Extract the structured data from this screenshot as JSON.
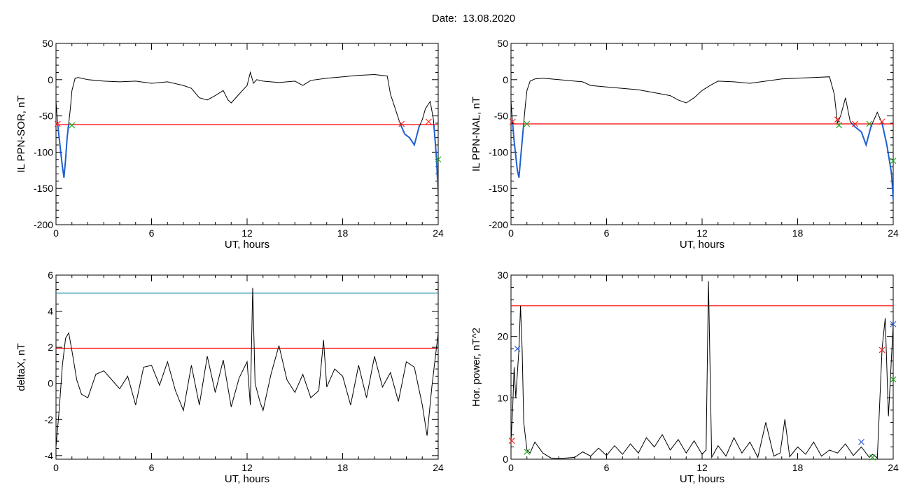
{
  "header": {
    "date_label": "Date:",
    "date_value": "13.08.2020"
  },
  "colors": {
    "line": "#000000",
    "threshold_red": "#ff0000",
    "threshold_cyan": "#1f8fa8",
    "highlight_blue": "#1f5fd0",
    "marker_green": "#1faa1f",
    "marker_red": "#ff2020",
    "marker_blue": "#3060e0"
  },
  "chart_data": [
    {
      "id": "sor",
      "type": "line",
      "xlabel": "UT, hours",
      "ylabel": "IL PPN-SOR, nT",
      "xlim": [
        0,
        24
      ],
      "ylim": [
        -200,
        50
      ],
      "xticks": [
        0,
        6,
        12,
        18,
        24
      ],
      "yticks": [
        50,
        0,
        -50,
        -100,
        -150,
        -200
      ],
      "threshold": -62,
      "highlight_below_threshold": true,
      "series": [
        {
          "x": [
            0,
            0.1,
            0.2,
            0.3,
            0.4,
            0.5,
            0.6,
            0.7,
            0.8,
            0.9,
            1.0,
            1.2,
            1.4,
            1.6,
            2.0,
            3.0,
            4.0,
            5.0,
            6.0,
            7.0,
            8.0,
            8.5,
            9.0,
            9.5,
            10.0,
            10.5,
            10.8,
            11.0,
            11.5,
            12.0,
            12.2,
            12.4,
            12.6,
            13.0,
            14.0,
            15.0,
            15.5,
            16.0,
            17.0,
            18.0,
            19.0,
            20.0,
            20.8,
            21.0,
            21.3,
            21.6,
            21.9,
            22.2,
            22.5,
            22.8,
            23.0,
            23.2,
            23.5,
            23.7,
            23.9,
            24.0
          ],
          "y": [
            -30,
            -60,
            -80,
            -100,
            -120,
            -135,
            -110,
            -80,
            -60,
            -40,
            -15,
            2,
            3,
            2,
            0,
            -2,
            -3,
            -2,
            -5,
            -3,
            -8,
            -12,
            -25,
            -28,
            -22,
            -15,
            -28,
            -32,
            -20,
            -8,
            10,
            -5,
            0,
            -2,
            -4,
            -2,
            -8,
            -1,
            2,
            4,
            6,
            7,
            5,
            -20,
            -40,
            -60,
            -75,
            -80,
            -90,
            -65,
            -55,
            -40,
            -30,
            -55,
            -110,
            -160
          ]
        }
      ],
      "markers": [
        {
          "x": 0.1,
          "y": -61,
          "color": "marker_red"
        },
        {
          "x": 1.0,
          "y": -63,
          "color": "marker_green"
        },
        {
          "x": 21.7,
          "y": -61,
          "color": "marker_red"
        },
        {
          "x": 23.4,
          "y": -58,
          "color": "marker_red"
        },
        {
          "x": 24.0,
          "y": -110,
          "color": "marker_green"
        }
      ]
    },
    {
      "id": "nal",
      "type": "line",
      "xlabel": "UT, hours",
      "ylabel": "IL PPN-NAL, nT",
      "xlim": [
        0,
        24
      ],
      "ylim": [
        -200,
        50
      ],
      "xticks": [
        0,
        6,
        12,
        18,
        24
      ],
      "yticks": [
        50,
        0,
        -50,
        -100,
        -150,
        -200
      ],
      "threshold": -61,
      "highlight_below_threshold": true,
      "series": [
        {
          "x": [
            0,
            0.1,
            0.2,
            0.3,
            0.4,
            0.5,
            0.6,
            0.7,
            0.8,
            0.9,
            1.0,
            1.2,
            1.5,
            2.0,
            3.0,
            4.0,
            4.5,
            5.0,
            6.0,
            7.0,
            8.0,
            9.0,
            10.0,
            10.5,
            11.0,
            11.5,
            12.0,
            12.5,
            13.0,
            14.0,
            15.0,
            16.0,
            17.0,
            18.0,
            19.0,
            20.0,
            20.3,
            20.5,
            20.7,
            21.0,
            21.3,
            21.6,
            22.0,
            22.3,
            22.6,
            23.0,
            23.3,
            23.6,
            23.9,
            24.0
          ],
          "y": [
            -30,
            -60,
            -85,
            -105,
            -125,
            -135,
            -110,
            -85,
            -60,
            -35,
            -15,
            -2,
            1,
            2,
            0,
            -2,
            -3,
            -8,
            -10,
            -12,
            -14,
            -18,
            -22,
            -28,
            -32,
            -25,
            -15,
            -8,
            -2,
            -3,
            -5,
            -2,
            1,
            2,
            3,
            4,
            -20,
            -60,
            -50,
            -25,
            -58,
            -65,
            -72,
            -90,
            -65,
            -45,
            -60,
            -90,
            -130,
            -165
          ]
        }
      ],
      "markers": [
        {
          "x": 0.1,
          "y": -58,
          "color": "marker_red"
        },
        {
          "x": 1.0,
          "y": -61,
          "color": "marker_green"
        },
        {
          "x": 20.5,
          "y": -55,
          "color": "marker_red"
        },
        {
          "x": 20.6,
          "y": -63,
          "color": "marker_green"
        },
        {
          "x": 21.6,
          "y": -61,
          "color": "marker_red"
        },
        {
          "x": 22.5,
          "y": -61,
          "color": "marker_green"
        },
        {
          "x": 23.3,
          "y": -58,
          "color": "marker_red"
        },
        {
          "x": 24.0,
          "y": -112,
          "color": "marker_green"
        }
      ]
    },
    {
      "id": "deltax",
      "type": "line",
      "xlabel": "UT, hours",
      "ylabel": "deltaX, nT",
      "xlim": [
        0,
        24
      ],
      "ylim": [
        -4.2,
        6
      ],
      "xticks": [
        0,
        6,
        12,
        18,
        24
      ],
      "yticks": [
        6,
        4,
        2,
        0,
        -2,
        -4
      ],
      "thresholds": [
        {
          "y": 5.0,
          "color": "threshold_cyan"
        },
        {
          "y": 1.95,
          "color": "threshold_red"
        }
      ],
      "series": [
        {
          "x": [
            0,
            0.2,
            0.4,
            0.6,
            0.8,
            1.0,
            1.3,
            1.6,
            2.0,
            2.5,
            3.0,
            3.5,
            4.0,
            4.5,
            5.0,
            5.5,
            6.0,
            6.5,
            7.0,
            7.5,
            8.0,
            8.5,
            9.0,
            9.5,
            10.0,
            10.5,
            11.0,
            11.5,
            12.0,
            12.2,
            12.35,
            12.5,
            12.8,
            13.0,
            13.5,
            14.0,
            14.5,
            15.0,
            15.5,
            16.0,
            16.5,
            16.8,
            17.0,
            17.5,
            18.0,
            18.5,
            19.0,
            19.5,
            20.0,
            20.5,
            21.0,
            21.5,
            22.0,
            22.5,
            23.0,
            23.3,
            23.6,
            24.0
          ],
          "y": [
            -3.5,
            -1.5,
            1.0,
            2.5,
            2.8,
            1.8,
            0.2,
            -0.6,
            -0.8,
            0.5,
            0.7,
            0.2,
            -0.3,
            0.4,
            -1.2,
            0.9,
            1.0,
            -0.1,
            1.2,
            -0.4,
            -1.5,
            1.0,
            -1.2,
            1.5,
            -0.5,
            1.3,
            -1.3,
            0.3,
            1.2,
            -1.2,
            5.3,
            0.0,
            -1.0,
            -1.5,
            0.5,
            2.1,
            0.2,
            -0.5,
            0.5,
            -0.8,
            -0.4,
            2.4,
            -0.2,
            0.8,
            0.4,
            -1.2,
            1.0,
            -0.8,
            1.5,
            -0.2,
            0.6,
            -1.0,
            1.2,
            0.9,
            -1.2,
            -2.9,
            -0.2,
            2.8
          ]
        }
      ]
    },
    {
      "id": "hor",
      "type": "line",
      "xlabel": "UT, hours",
      "ylabel": "Hor. power, nT^2",
      "xlim": [
        0,
        24
      ],
      "ylim": [
        0,
        30
      ],
      "xticks": [
        0,
        6,
        12,
        18,
        24
      ],
      "yticks": [
        30,
        20,
        10,
        0
      ],
      "threshold": 25,
      "series": [
        {
          "x": [
            0,
            0.1,
            0.2,
            0.3,
            0.4,
            0.5,
            0.6,
            0.7,
            0.8,
            1.0,
            1.2,
            1.5,
            2.0,
            2.5,
            3.0,
            4.0,
            4.5,
            5.0,
            5.5,
            6.0,
            6.5,
            7.0,
            7.5,
            8.0,
            8.5,
            9.0,
            9.5,
            10.0,
            10.5,
            11.0,
            11.5,
            12.0,
            12.25,
            12.4,
            12.6,
            13.0,
            13.5,
            14.0,
            14.5,
            15.0,
            15.5,
            16.0,
            16.5,
            16.9,
            17.2,
            17.5,
            18.0,
            18.5,
            19.0,
            19.5,
            20.0,
            20.5,
            21.0,
            21.5,
            22.0,
            22.5,
            22.7,
            23.0,
            23.3,
            23.5,
            23.7,
            24.0
          ],
          "y": [
            3,
            8,
            15,
            10,
            14,
            18,
            25,
            18,
            6,
            1.5,
            1.0,
            2.8,
            1.0,
            0.2,
            0.1,
            0.3,
            1.2,
            0.5,
            1.8,
            0.6,
            2.2,
            0.8,
            2.5,
            1.0,
            3.5,
            2.0,
            4.0,
            1.5,
            3.2,
            1.0,
            3.0,
            0.8,
            1.5,
            29,
            0.3,
            2.2,
            0.5,
            3.5,
            1.0,
            2.8,
            0.3,
            6.0,
            0.5,
            1.0,
            6.5,
            0.4,
            2.0,
            0.8,
            2.8,
            0.5,
            1.5,
            1.0,
            2.5,
            0.6,
            2.0,
            0.3,
            0.8,
            0.2,
            18,
            23,
            7,
            22
          ]
        }
      ],
      "markers": [
        {
          "x": 0.4,
          "y": 18,
          "color": "marker_blue"
        },
        {
          "x": 1.0,
          "y": 1.2,
          "color": "marker_green"
        },
        {
          "x": 22.0,
          "y": 2.8,
          "color": "marker_blue"
        },
        {
          "x": 22.7,
          "y": 0.3,
          "color": "marker_green"
        },
        {
          "x": 23.3,
          "y": 17.8,
          "color": "marker_red"
        },
        {
          "x": 24.0,
          "y": 22,
          "color": "marker_blue"
        },
        {
          "x": 24.0,
          "y": 13,
          "color": "marker_green"
        },
        {
          "x": 0.05,
          "y": 3,
          "color": "marker_red"
        }
      ]
    }
  ]
}
